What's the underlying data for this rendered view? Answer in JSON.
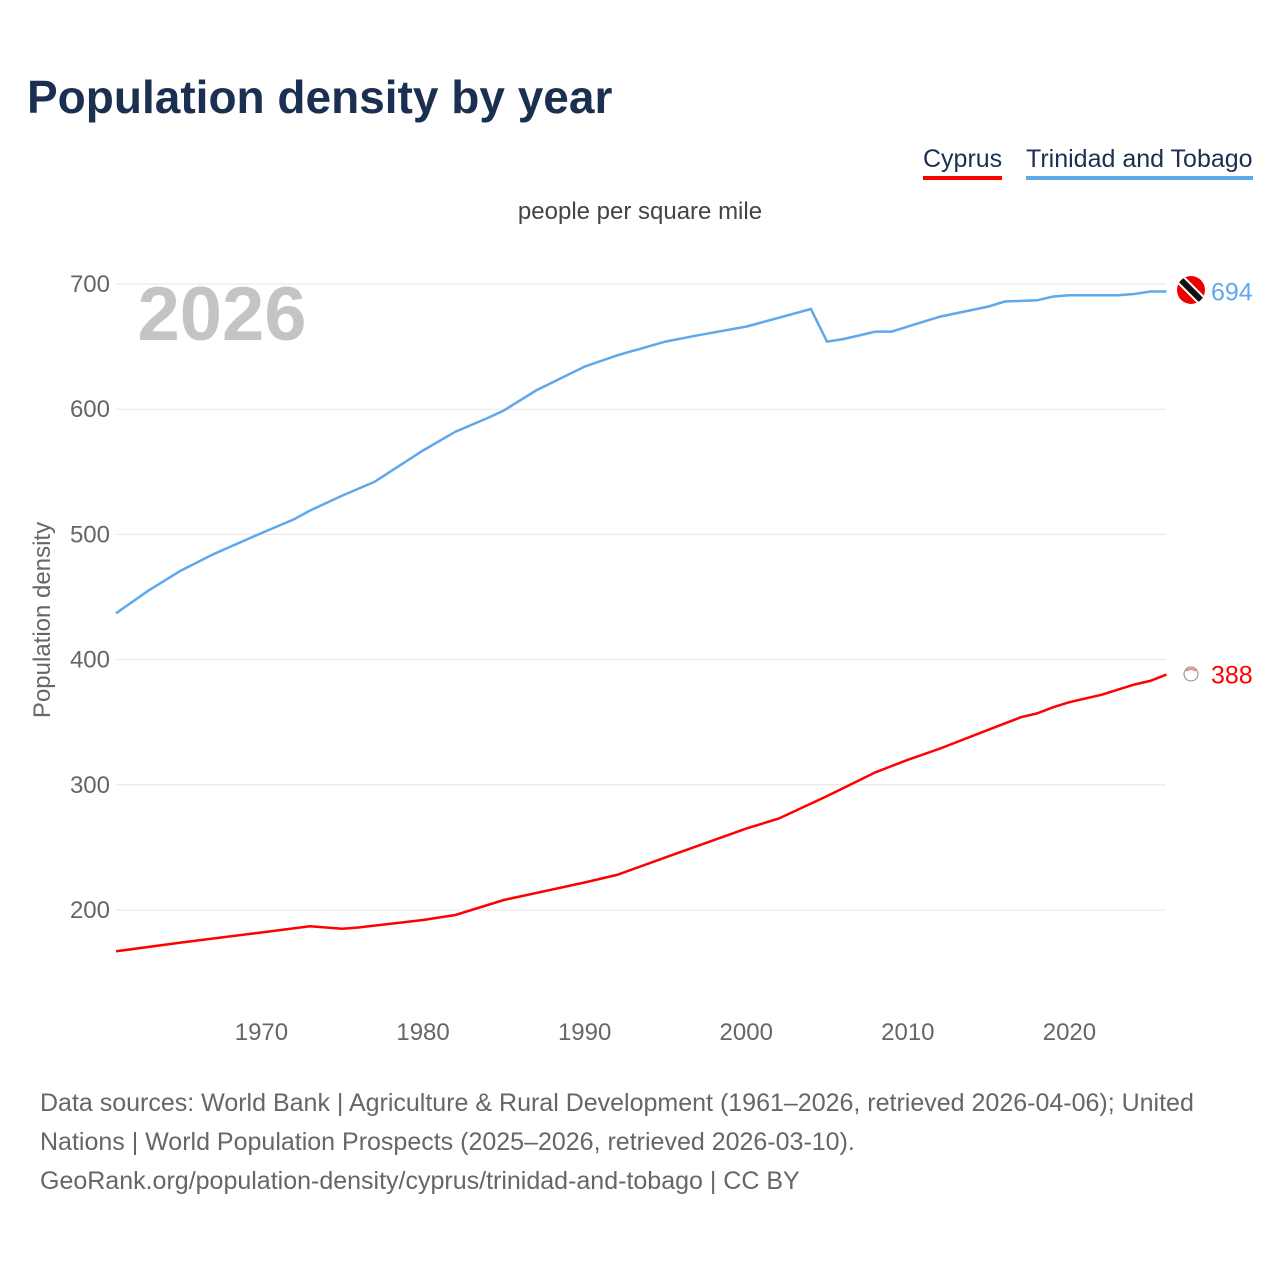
{
  "title": "Population density by year",
  "legend": [
    {
      "label": "Cyprus",
      "color": "#ff0000"
    },
    {
      "label": "Trinidad and Tobago",
      "color": "#5ea8ec"
    }
  ],
  "unit": "people per square mile",
  "year_label": "2026",
  "footer": {
    "line1": "Data sources: World Bank | Agriculture & Rural Development (1961–2026, retrieved 2026-04-06); United Nations | World Population Prospects (2025–2026, retrieved 2026-03-10).",
    "line2": "GeoRank.org/population-density/cyprus/trinidad-and-tobago | CC BY"
  },
  "chart_data": {
    "type": "line",
    "title": "Population density by year",
    "subtitle": "people per square mile",
    "xlabel": "",
    "ylabel": "Population density",
    "xlim": [
      1961,
      2026
    ],
    "ylim": [
      120,
      720
    ],
    "xticks": [
      1970,
      1980,
      1990,
      2000,
      2010,
      2020
    ],
    "yticks": [
      200,
      300,
      400,
      500,
      600,
      700
    ],
    "grid": true,
    "legend_placement": "top-right",
    "series": [
      {
        "name": "Cyprus",
        "color": "#ff0000",
        "end_label": "388",
        "x": [
          1961,
          1965,
          1970,
          1973,
          1975,
          1976,
          1980,
          1982,
          1985,
          1990,
          1992,
          1995,
          2000,
          2002,
          2005,
          2008,
          2010,
          2012,
          2015,
          2017,
          2018,
          2019,
          2020,
          2022,
          2024,
          2025,
          2026
        ],
        "y": [
          167,
          174,
          182,
          187,
          185,
          186,
          192,
          196,
          208,
          222,
          228,
          242,
          265,
          273,
          291,
          310,
          320,
          329,
          344,
          354,
          357,
          362,
          366,
          372,
          380,
          383,
          388
        ]
      },
      {
        "name": "Trinidad and Tobago",
        "color": "#5ea8ec",
        "end_label": "694",
        "x": [
          1961,
          1963,
          1965,
          1967,
          1970,
          1972,
          1973,
          1975,
          1977,
          1980,
          1982,
          1984,
          1985,
          1987,
          1990,
          1992,
          1995,
          1997,
          2000,
          2002,
          2004,
          2005,
          2006,
          2008,
          2009,
          2010,
          2012,
          2015,
          2016,
          2018,
          2019,
          2020,
          2023,
          2024,
          2025,
          2026
        ],
        "y": [
          437,
          455,
          471,
          484,
          501,
          512,
          519,
          531,
          542,
          567,
          582,
          593,
          599,
          615,
          634,
          643,
          654,
          659,
          666,
          673,
          680,
          654,
          656,
          662,
          662,
          666,
          674,
          682,
          686,
          687,
          690,
          691,
          691,
          692,
          694,
          694
        ]
      }
    ]
  }
}
